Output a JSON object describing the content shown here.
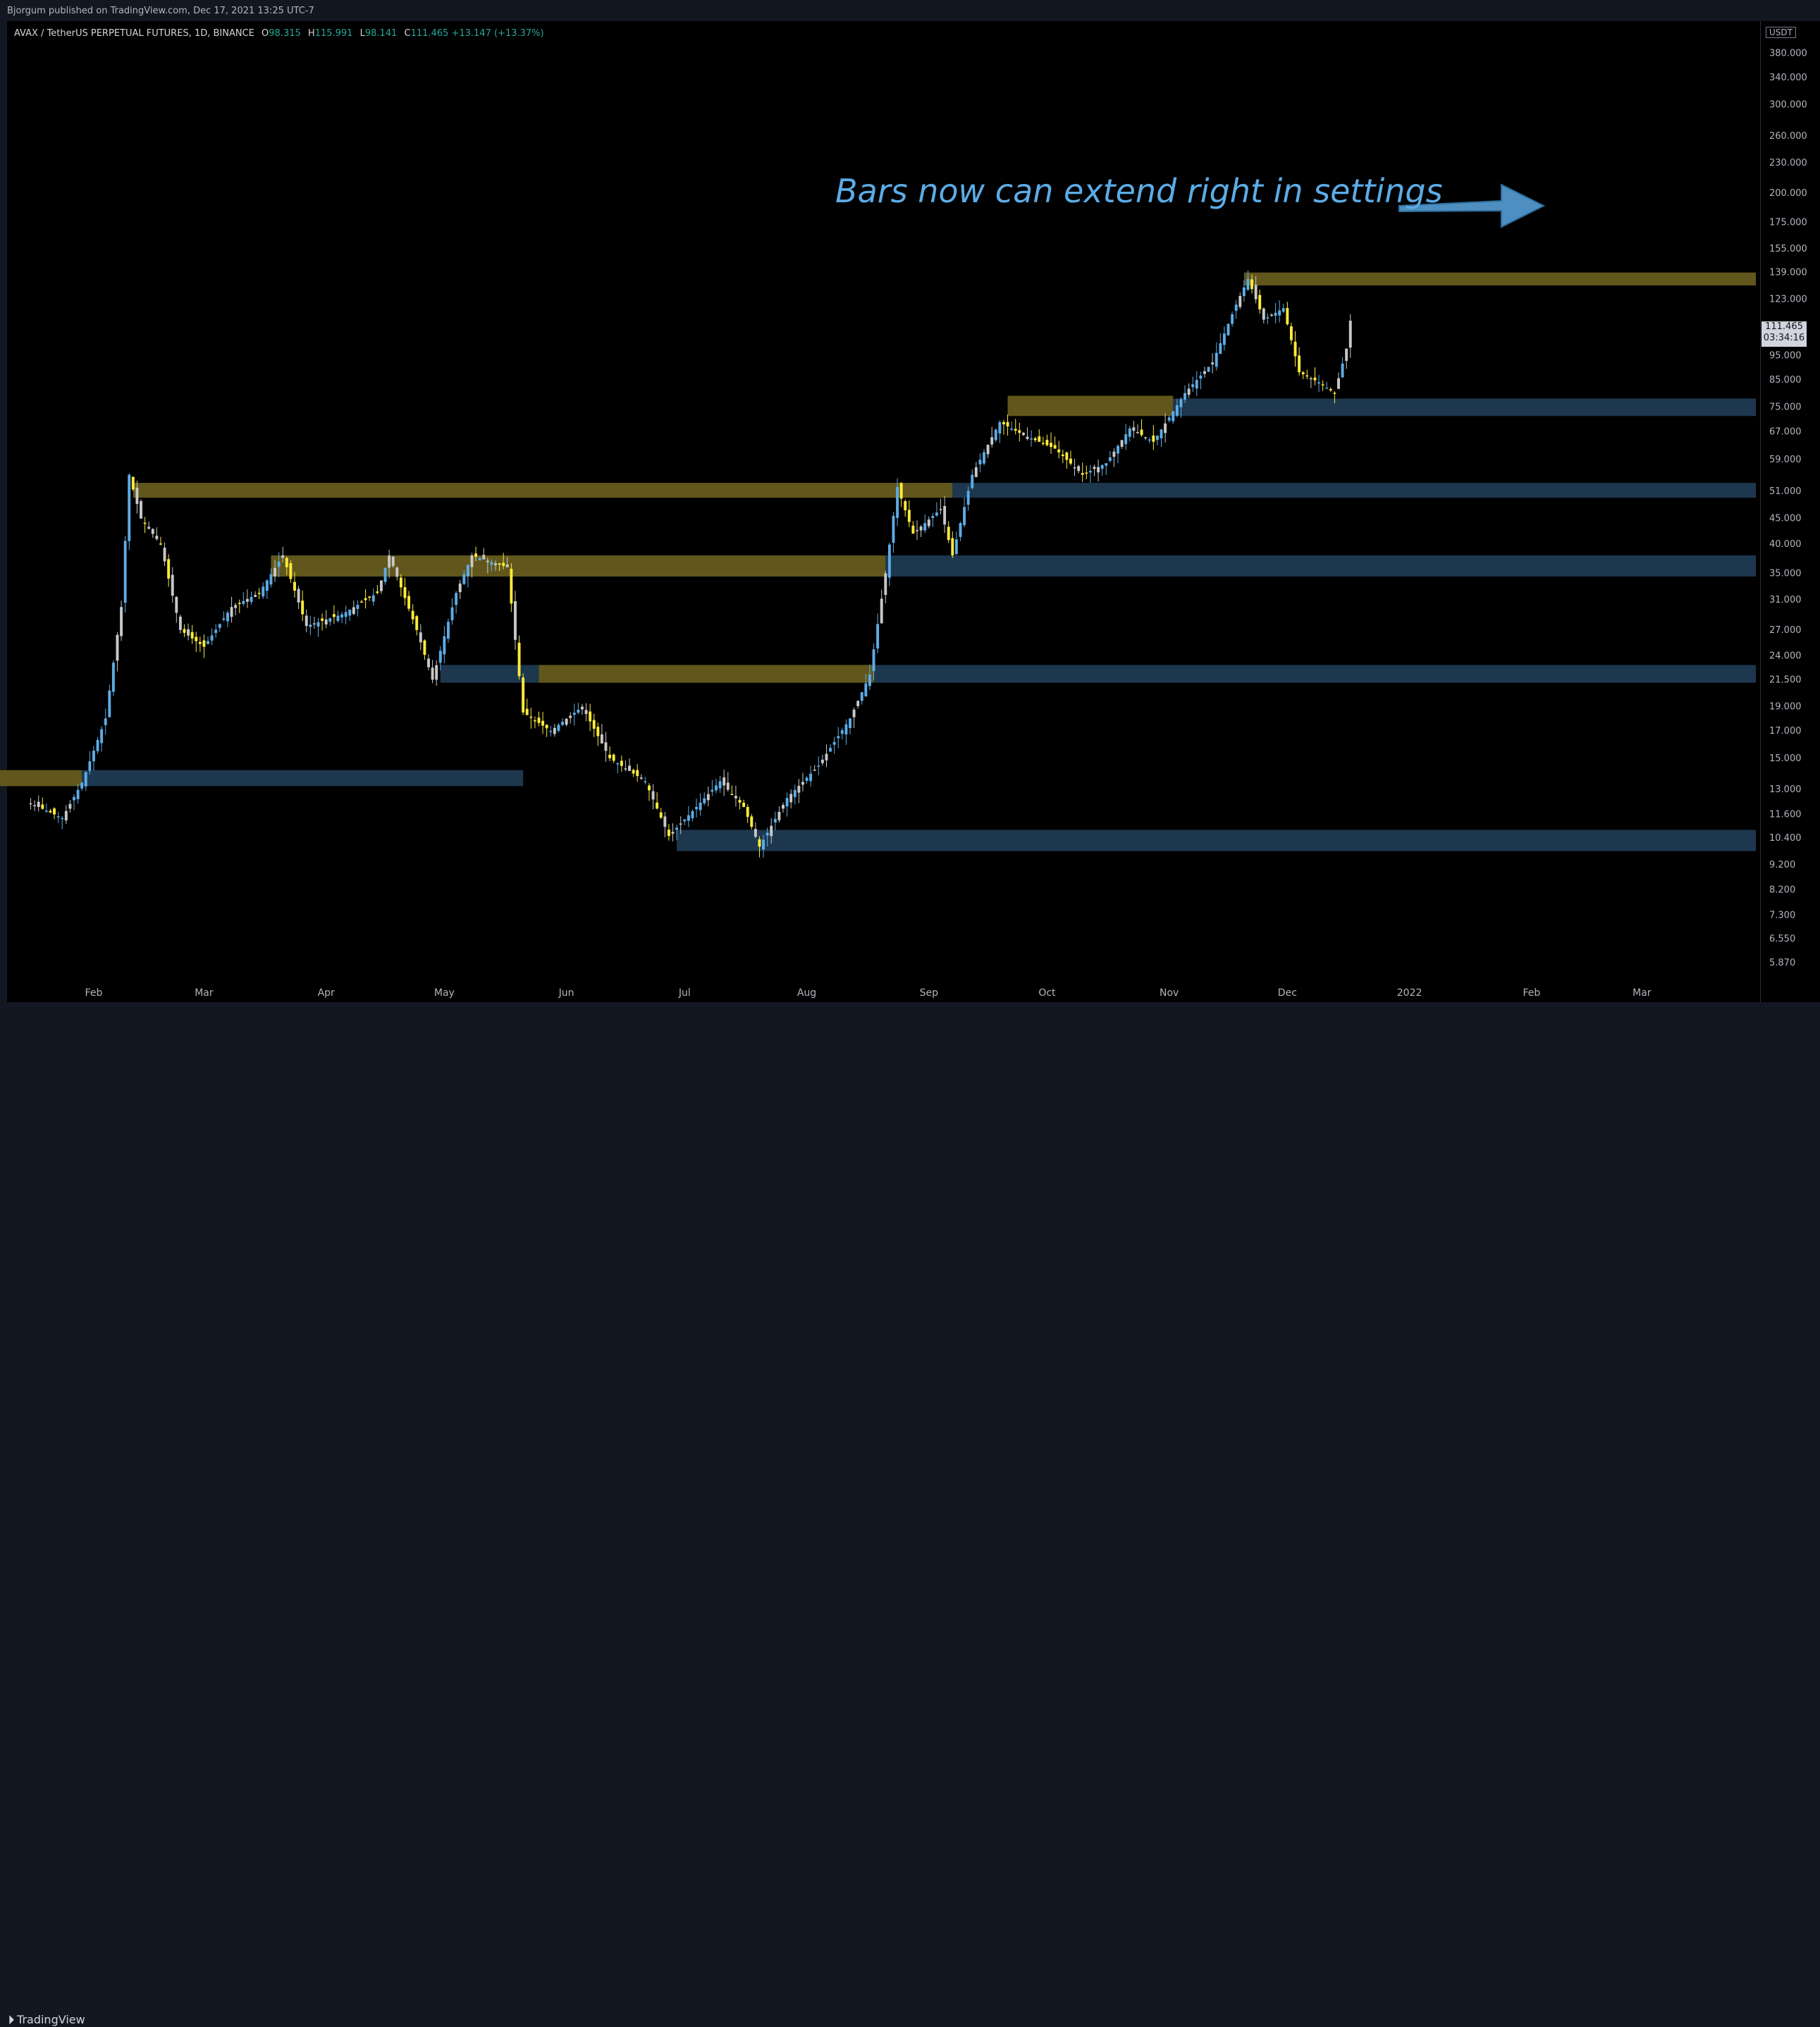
{
  "header": {
    "published": "Bjorgum published on TradingView.com, Dec 17, 2021 13:25 UTC-7"
  },
  "legend": {
    "symbol": "AVAX / TetherUS PERPETUAL FUTURES, 1D, BINANCE",
    "open_label": "O",
    "open": "98.315",
    "high_label": "H",
    "high": "115.991",
    "low_label": "L",
    "low": "98.141",
    "close_label": "C",
    "close": "111.465",
    "change": "+13.147 (+13.37%)"
  },
  "annotation": {
    "text": "Bars now can extend right in settings"
  },
  "price_axis": {
    "currency": "USDT",
    "last_price": "111.465",
    "countdown": "03:34:16"
  },
  "footer": {
    "brand": "TradingView"
  },
  "colors": {
    "background": "#000000",
    "bull_candle": "#5cace6",
    "bear_candle": "#ffeb3b",
    "neutral_candle": "#c8c8c8",
    "supply_zone": "#665c1e",
    "demand_zone": "#1f3a52",
    "annotation": "#5cace6"
  },
  "chart_data": {
    "type": "candlestick",
    "y_scale": "log",
    "ylim": [
      5.4,
      440
    ],
    "x_ticks": [
      "Feb",
      "Mar",
      "Apr",
      "May",
      "Jun",
      "Jul",
      "Aug",
      "Sep",
      "Oct",
      "Nov",
      "Dec",
      "2022",
      "Feb",
      "Mar"
    ],
    "y_ticks": [
      "380.000",
      "340.000",
      "300.000",
      "260.000",
      "230.000",
      "200.000",
      "175.000",
      "155.000",
      "139.000",
      "123.000",
      "95.000",
      "85.000",
      "75.000",
      "67.000",
      "59.000",
      "51.000",
      "45.000",
      "40.000",
      "35.000",
      "31.000",
      "27.000",
      "24.000",
      "21.500",
      "19.000",
      "17.000",
      "15.000",
      "13.000",
      "11.600",
      "10.400",
      "9.200",
      "8.200",
      "7.300",
      "6.550",
      "5.870"
    ],
    "price_path": [
      {
        "date": "2021-01-16",
        "price": 12.2
      },
      {
        "date": "2021-01-24",
        "price": 11.4
      },
      {
        "date": "2021-01-29",
        "price": 13.4
      },
      {
        "date": "2021-02-04",
        "price": 18.0
      },
      {
        "date": "2021-02-08",
        "price": 30.0
      },
      {
        "date": "2021-02-10",
        "price": 55.0
      },
      {
        "date": "2021-02-13",
        "price": 45.0
      },
      {
        "date": "2021-02-18",
        "price": 40.0
      },
      {
        "date": "2021-02-23",
        "price": 27.0
      },
      {
        "date": "2021-03-01",
        "price": 25.0
      },
      {
        "date": "2021-03-08",
        "price": 30.0
      },
      {
        "date": "2021-03-15",
        "price": 32.0
      },
      {
        "date": "2021-03-21",
        "price": 38.0
      },
      {
        "date": "2021-03-27",
        "price": 27.5
      },
      {
        "date": "2021-04-05",
        "price": 29.0
      },
      {
        "date": "2021-04-14",
        "price": 32.0
      },
      {
        "date": "2021-04-17",
        "price": 38.0
      },
      {
        "date": "2021-04-24",
        "price": 27.0
      },
      {
        "date": "2021-04-28",
        "price": 21.5
      },
      {
        "date": "2021-05-04",
        "price": 32.0
      },
      {
        "date": "2021-05-08",
        "price": 38.0
      },
      {
        "date": "2021-05-17",
        "price": 36.0
      },
      {
        "date": "2021-05-21",
        "price": 18.5
      },
      {
        "date": "2021-05-28",
        "price": 17.0
      },
      {
        "date": "2021-06-05",
        "price": 19.0
      },
      {
        "date": "2021-06-12",
        "price": 15.0
      },
      {
        "date": "2021-06-21",
        "price": 13.5
      },
      {
        "date": "2021-06-27",
        "price": 10.5
      },
      {
        "date": "2021-07-04",
        "price": 12.0
      },
      {
        "date": "2021-07-10",
        "price": 13.5
      },
      {
        "date": "2021-07-16",
        "price": 12.0
      },
      {
        "date": "2021-07-20",
        "price": 10.0
      },
      {
        "date": "2021-07-27",
        "price": 12.5
      },
      {
        "date": "2021-08-04",
        "price": 14.5
      },
      {
        "date": "2021-08-12",
        "price": 18.0
      },
      {
        "date": "2021-08-17",
        "price": 22.0
      },
      {
        "date": "2021-08-21",
        "price": 35.0
      },
      {
        "date": "2021-08-24",
        "price": 52.0
      },
      {
        "date": "2021-08-28",
        "price": 42.0
      },
      {
        "date": "2021-09-04",
        "price": 47.0
      },
      {
        "date": "2021-09-07",
        "price": 38.0
      },
      {
        "date": "2021-09-12",
        "price": 55.0
      },
      {
        "date": "2021-09-19",
        "price": 70.0
      },
      {
        "date": "2021-09-25",
        "price": 66.0
      },
      {
        "date": "2021-10-03",
        "price": 62.0
      },
      {
        "date": "2021-10-10",
        "price": 55.0
      },
      {
        "date": "2021-10-16",
        "price": 58.0
      },
      {
        "date": "2021-10-22",
        "price": 68.0
      },
      {
        "date": "2021-10-28",
        "price": 64.0
      },
      {
        "date": "2021-11-05",
        "price": 80.0
      },
      {
        "date": "2021-11-12",
        "price": 92.0
      },
      {
        "date": "2021-11-18",
        "price": 120.0
      },
      {
        "date": "2021-11-21",
        "price": 135.0
      },
      {
        "date": "2021-11-25",
        "price": 112.0
      },
      {
        "date": "2021-11-30",
        "price": 118.0
      },
      {
        "date": "2021-12-04",
        "price": 88.0
      },
      {
        "date": "2021-12-09",
        "price": 84.0
      },
      {
        "date": "2021-12-13",
        "price": 80.0
      },
      {
        "date": "2021-12-16",
        "price": 98.0
      },
      {
        "date": "2021-12-17",
        "price": 111.465
      }
    ],
    "zones": [
      {
        "kind": "supply",
        "start": "2021-11-20",
        "end": "2022-03-31",
        "low": 131,
        "high": 139
      },
      {
        "kind": "supply",
        "start": "2021-09-21",
        "end": "2021-11-02",
        "low": 72,
        "high": 79
      },
      {
        "kind": "demand",
        "start": "2021-11-02",
        "end": "2022-03-31",
        "low": 72,
        "high": 78
      },
      {
        "kind": "supply",
        "start": "2021-02-11",
        "end": "2021-09-07",
        "low": 49.5,
        "high": 53
      },
      {
        "kind": "demand",
        "start": "2021-09-07",
        "end": "2022-03-31",
        "low": 49.5,
        "high": 53
      },
      {
        "kind": "supply",
        "start": "2021-03-18",
        "end": "2021-08-21",
        "low": 34.5,
        "high": 38
      },
      {
        "kind": "demand",
        "start": "2021-08-21",
        "end": "2022-03-31",
        "low": 34.5,
        "high": 38
      },
      {
        "kind": "demand",
        "start": "2021-04-30",
        "end": "2021-05-25",
        "low": 21.2,
        "high": 23
      },
      {
        "kind": "supply",
        "start": "2021-05-25",
        "end": "2021-08-18",
        "low": 21.2,
        "high": 23
      },
      {
        "kind": "demand",
        "start": "2021-08-18",
        "end": "2022-03-31",
        "low": 21.2,
        "high": 23
      },
      {
        "kind": "supply",
        "start": "2021-01-01",
        "end": "2021-01-29",
        "low": 13.2,
        "high": 14.2
      },
      {
        "kind": "demand",
        "start": "2021-01-29",
        "end": "2021-05-21",
        "low": 13.2,
        "high": 14.2
      },
      {
        "kind": "demand",
        "start": "2021-06-29",
        "end": "2022-03-31",
        "low": 9.8,
        "high": 10.8
      }
    ]
  }
}
